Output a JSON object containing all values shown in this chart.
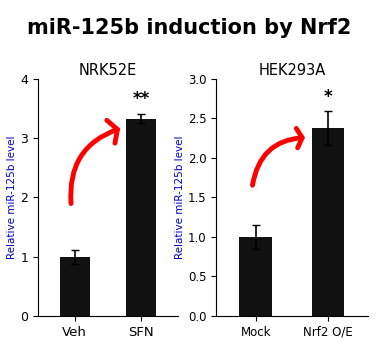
{
  "title": "miR-125b induction by Nrf2",
  "title_bg": "#f5c400",
  "title_color": "#000000",
  "title_fontsize": 15,
  "panel1": {
    "subtitle": "NRK52E",
    "categories": [
      "Veh",
      "SFN"
    ],
    "values": [
      1.0,
      3.33
    ],
    "errors": [
      0.12,
      0.08
    ],
    "ylim": [
      0,
      4
    ],
    "yticks": [
      0,
      1,
      2,
      3,
      4
    ],
    "ylabel": "Relative miR-125b level",
    "bar_color": "#111111",
    "significance": "**"
  },
  "panel2": {
    "subtitle": "HEK293A",
    "categories": [
      "Mock",
      "Nrf2 O/E"
    ],
    "values": [
      1.0,
      2.38
    ],
    "errors": [
      0.15,
      0.22
    ],
    "ylim": [
      0,
      3.0
    ],
    "yticks": [
      0.0,
      0.5,
      1.0,
      1.5,
      2.0,
      2.5,
      3.0
    ],
    "ylabel": "Relative miR-125b level",
    "bar_color": "#111111",
    "significance": "*"
  },
  "background_color": "#ffffff",
  "panel_bg": "#f0f0ff",
  "border_color": "#b0b0cc",
  "ylabel_color": "#0000cc",
  "title_label_color": "#000000"
}
